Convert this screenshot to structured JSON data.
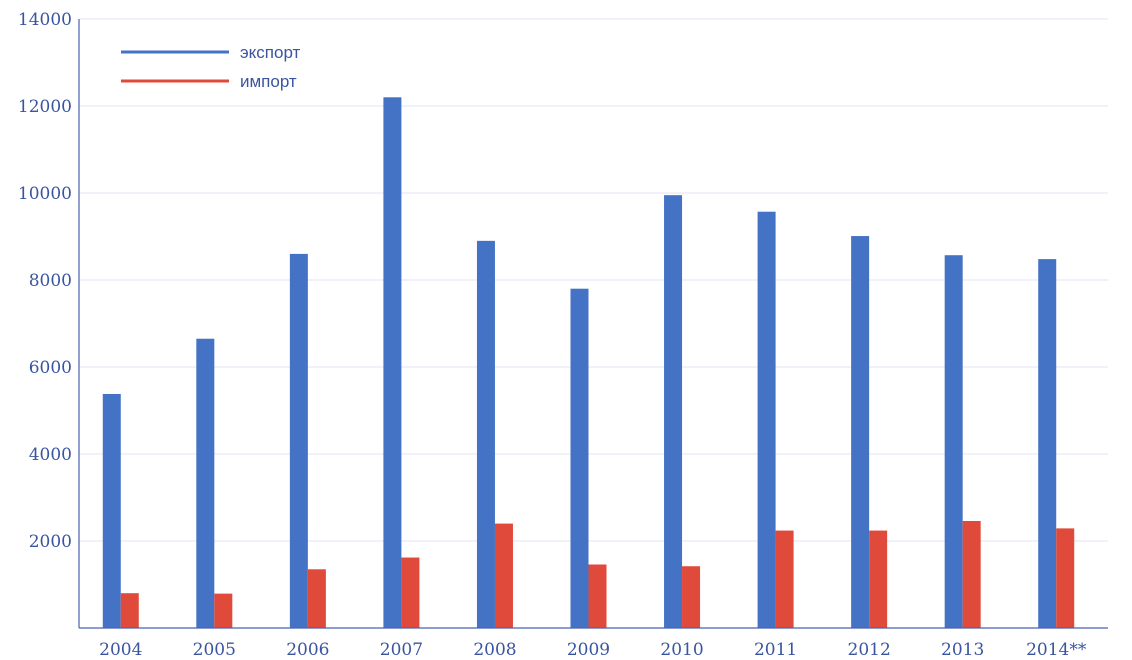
{
  "chart_data": {
    "type": "bar",
    "categories": [
      "2004",
      "2005",
      "2006",
      "2007",
      "2008",
      "2009",
      "2010",
      "2011",
      "2012",
      "2013",
      "2014**"
    ],
    "series": [
      {
        "name": "экспорт",
        "color": "#4472c4",
        "values": [
          5380,
          6650,
          8600,
          12200,
          8900,
          7800,
          9950,
          9570,
          9010,
          8570,
          8480
        ]
      },
      {
        "name": "импорт",
        "color": "#e04a3a",
        "values": [
          800,
          790,
          1350,
          1620,
          2400,
          1460,
          1420,
          2240,
          2240,
          2460,
          2290
        ]
      }
    ],
    "y_ticks": [
      "2000",
      "4000",
      "6000",
      "8000",
      "10000",
      "12000",
      "14000"
    ],
    "ylim": [
      0,
      14000
    ],
    "grid": true,
    "legend_position": "top-left",
    "title": "",
    "xlabel": "",
    "ylabel": ""
  }
}
